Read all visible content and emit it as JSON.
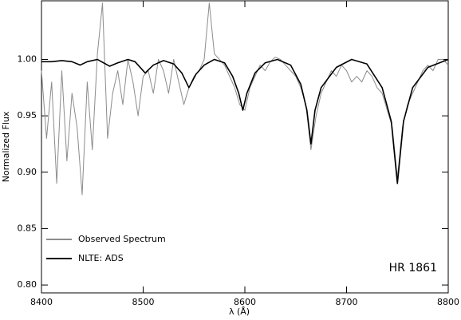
{
  "chart_data": {
    "type": "line",
    "xlabel": "λ (Å)",
    "ylabel": "Normalized Flux",
    "annotation": "HR 1861",
    "xlim": [
      8400,
      8800
    ],
    "xticks": [
      8400,
      8500,
      8600,
      8700,
      8800
    ],
    "ylim": [
      0.793,
      1.052
    ],
    "yticks": [
      {
        "value": 0.8,
        "label": "0.80"
      },
      {
        "value": 0.85,
        "label": "0.85"
      },
      {
        "value": 0.9,
        "label": "0.90"
      },
      {
        "value": 0.95,
        "label": "0.95"
      },
      {
        "value": 1.0,
        "label": "1.00"
      }
    ],
    "legend": "lower left",
    "series": [
      {
        "name": "Observed Spectrum",
        "color": "#8c8c8c",
        "x": [
          8400,
          8405,
          8410,
          8415,
          8420,
          8425,
          8430,
          8435,
          8440,
          8445,
          8450,
          8455,
          8460,
          8465,
          8470,
          8475,
          8480,
          8485,
          8490,
          8495,
          8500,
          8505,
          8510,
          8515,
          8520,
          8525,
          8530,
          8535,
          8540,
          8545,
          8550,
          8555,
          8560,
          8565,
          8570,
          8575,
          8580,
          8585,
          8590,
          8595,
          8600,
          8605,
          8610,
          8615,
          8620,
          8625,
          8630,
          8635,
          8640,
          8645,
          8650,
          8655,
          8660,
          8665,
          8670,
          8675,
          8680,
          8685,
          8690,
          8695,
          8700,
          8705,
          8710,
          8715,
          8720,
          8725,
          8730,
          8735,
          8740,
          8745,
          8750,
          8755,
          8760,
          8765,
          8770,
          8775,
          8780,
          8785,
          8790,
          8795,
          8800
        ],
        "values": [
          0.99,
          0.93,
          0.98,
          0.89,
          0.99,
          0.91,
          0.97,
          0.94,
          0.88,
          0.98,
          0.92,
          1.005,
          1.05,
          0.93,
          0.97,
          0.99,
          0.96,
          1.0,
          0.98,
          0.95,
          0.985,
          0.99,
          0.97,
          1.0,
          0.99,
          0.97,
          1.0,
          0.98,
          0.96,
          0.975,
          0.985,
          0.99,
          1.0,
          1.05,
          1.005,
          1.0,
          0.995,
          0.985,
          0.975,
          0.96,
          0.955,
          0.975,
          0.985,
          0.995,
          0.99,
          0.998,
          1.002,
          1.0,
          0.995,
          0.99,
          0.985,
          0.975,
          0.96,
          0.92,
          0.95,
          0.97,
          0.98,
          0.99,
          0.985,
          0.995,
          0.99,
          0.98,
          0.985,
          0.98,
          0.99,
          0.985,
          0.975,
          0.97,
          0.955,
          0.94,
          0.895,
          0.94,
          0.96,
          0.97,
          0.98,
          0.99,
          0.995,
          0.99,
          1.0,
          1.0,
          0.995
        ]
      },
      {
        "name": "NLTE: ADS",
        "color": "#000000",
        "x": [
          8400,
          8410,
          8420,
          8430,
          8438,
          8445,
          8455,
          8467,
          8475,
          8485,
          8492,
          8502,
          8510,
          8520,
          8530,
          8538,
          8545,
          8552,
          8560,
          8570,
          8580,
          8588,
          8594,
          8598,
          8602,
          8610,
          8620,
          8632,
          8645,
          8655,
          8661,
          8665,
          8669,
          8675,
          8690,
          8705,
          8720,
          8735,
          8744,
          8750,
          8756,
          8765,
          8780,
          8800
        ],
        "values": [
          0.998,
          0.998,
          0.999,
          0.998,
          0.995,
          0.998,
          1.0,
          0.994,
          0.997,
          1.0,
          0.998,
          0.988,
          0.995,
          0.999,
          0.996,
          0.988,
          0.975,
          0.987,
          0.995,
          1.0,
          0.997,
          0.985,
          0.97,
          0.955,
          0.97,
          0.988,
          0.997,
          1.0,
          0.995,
          0.978,
          0.955,
          0.925,
          0.955,
          0.975,
          0.993,
          1.0,
          0.996,
          0.975,
          0.945,
          0.89,
          0.945,
          0.975,
          0.993,
          1.0
        ]
      }
    ]
  }
}
